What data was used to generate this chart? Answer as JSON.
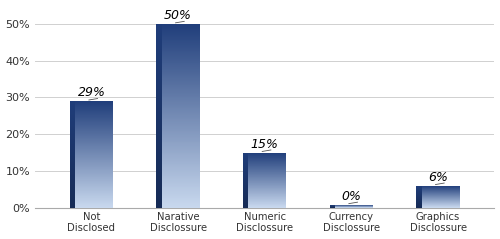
{
  "categories": [
    "Not\nDisclosed",
    "Narative\nDisclossure",
    "Numeric\nDisclossure",
    "Currency\nDisclossure",
    "Graphics\nDisclossure"
  ],
  "values": [
    29,
    50,
    15,
    0,
    6
  ],
  "labels": [
    "29%",
    "50%",
    "15%",
    "0%",
    "6%"
  ],
  "bar_color_dark": "#1f3d7a",
  "bar_color_light": "#c8d8ee",
  "ylim": [
    0,
    55
  ],
  "yticks": [
    0,
    10,
    20,
    30,
    40,
    50
  ],
  "ytick_labels": [
    "0%",
    "10%",
    "20%",
    "30%",
    "40%",
    "50%"
  ],
  "label_fontsize": 9,
  "tick_fontsize": 8,
  "background_color": "#ffffff",
  "grid_color": "#d0d0d0",
  "bar_width": 0.5,
  "figsize": [
    5.0,
    2.39
  ],
  "dpi": 100
}
